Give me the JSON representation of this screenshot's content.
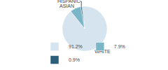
{
  "chart_data": {
    "type": "pie",
    "categories": [
      "WHITE",
      "ASIAN",
      "HISPANIC"
    ],
    "values": [
      91.2,
      7.9,
      0.9
    ],
    "value_labels": [
      "91.2%",
      "7.9%",
      "0.9%"
    ],
    "colors": [
      "#d6e4ef",
      "#7ab5c8",
      "#2d5f7a"
    ],
    "legend": "bottom"
  }
}
